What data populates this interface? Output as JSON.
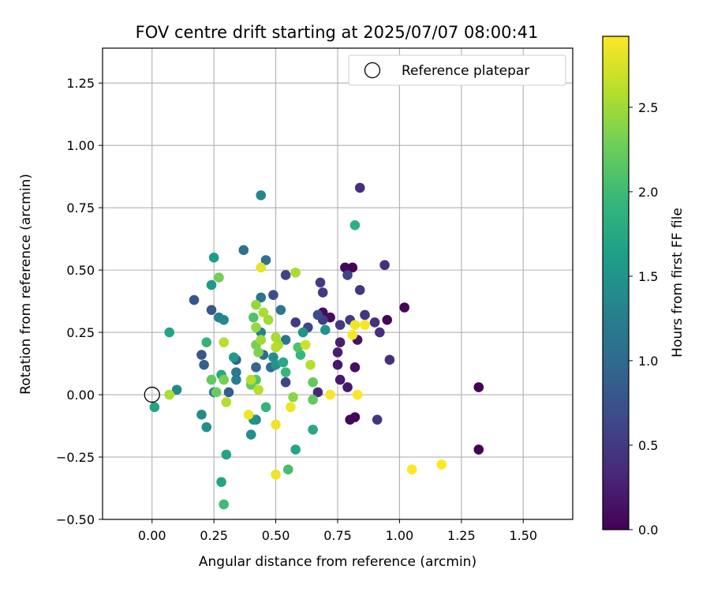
{
  "chart_data": {
    "type": "scatter",
    "title": "FOV centre drift starting at 2025/07/07 08:00:41",
    "xlabel": "Angular distance from reference (arcmin)",
    "ylabel": "Rotation from reference (arcmin)",
    "xlim": [
      -0.2,
      1.7
    ],
    "ylim": [
      -0.5,
      1.39
    ],
    "xticks": [
      0.0,
      0.25,
      0.5,
      0.75,
      1.0,
      1.25,
      1.5
    ],
    "xtick_labels": [
      "0.00",
      "0.25",
      "0.50",
      "0.75",
      "1.00",
      "1.25",
      "1.50"
    ],
    "yticks": [
      -0.5,
      -0.25,
      0.0,
      0.25,
      0.5,
      0.75,
      1.0,
      1.25
    ],
    "ytick_labels": [
      "−0.50",
      "−0.25",
      "0.00",
      "0.25",
      "0.50",
      "0.75",
      "1.00",
      "1.25"
    ],
    "grid": true,
    "legend": {
      "placement": "top-right",
      "entries": [
        "Reference platepar"
      ]
    },
    "reference_point": {
      "name": "Reference platepar",
      "x": 0.0,
      "y": 0.0,
      "marker": "open-circle"
    },
    "colorbar": {
      "label": "Hours from first FF file",
      "colormap": "viridis",
      "range": [
        0.0,
        2.92
      ],
      "ticks": [
        0.0,
        0.5,
        1.0,
        1.5,
        2.0,
        2.5
      ],
      "tick_labels": [
        "0.0",
        "0.5",
        "1.0",
        "1.5",
        "2.0",
        "2.5"
      ],
      "colors": [
        "#440154",
        "#482878",
        "#3e4989",
        "#31688e",
        "#26828e",
        "#1f9e89",
        "#35b779",
        "#6ece58",
        "#b5de2b",
        "#fde725"
      ]
    },
    "series": [
      {
        "points": [
          [
            1.32,
            0.03,
            0.0
          ],
          [
            1.32,
            -0.22,
            0.0
          ],
          [
            1.02,
            0.35,
            0.05
          ],
          [
            0.95,
            0.3,
            0.05
          ],
          [
            0.81,
            0.51,
            0.02
          ],
          [
            0.78,
            0.51,
            0.05
          ],
          [
            0.72,
            0.31,
            0.1
          ],
          [
            0.69,
            0.33,
            0.1
          ],
          [
            0.8,
            -0.1,
            0.05
          ],
          [
            0.82,
            -0.09,
            0.05
          ],
          [
            0.82,
            0.11,
            0.1
          ],
          [
            0.83,
            0.22,
            0.15
          ],
          [
            0.75,
            0.12,
            0.2
          ],
          [
            0.76,
            0.06,
            0.2
          ],
          [
            0.79,
            0.03,
            0.2
          ],
          [
            0.75,
            0.17,
            0.25
          ],
          [
            0.76,
            0.21,
            0.25
          ],
          [
            0.67,
            0.01,
            0.3
          ],
          [
            0.84,
            0.83,
            0.4
          ],
          [
            0.94,
            0.52,
            0.4
          ],
          [
            0.84,
            0.42,
            0.45
          ],
          [
            0.91,
            -0.1,
            0.45
          ],
          [
            0.96,
            0.14,
            0.4
          ],
          [
            0.9,
            0.29,
            0.4
          ],
          [
            0.92,
            0.25,
            0.4
          ],
          [
            0.86,
            0.32,
            0.45
          ],
          [
            0.8,
            0.3,
            0.5
          ],
          [
            0.76,
            0.28,
            0.5
          ],
          [
            0.68,
            0.45,
            0.5
          ],
          [
            0.69,
            0.41,
            0.5
          ],
          [
            0.69,
            0.3,
            0.55
          ],
          [
            0.58,
            0.29,
            0.5
          ],
          [
            0.54,
            0.48,
            0.6
          ],
          [
            0.54,
            0.05,
            0.6
          ],
          [
            0.63,
            0.27,
            0.6
          ],
          [
            0.79,
            0.48,
            0.6
          ],
          [
            0.67,
            0.32,
            0.7
          ],
          [
            0.49,
            0.4,
            0.7
          ],
          [
            0.17,
            0.38,
            0.8
          ],
          [
            0.2,
            0.16,
            0.8
          ],
          [
            0.24,
            0.34,
            0.8
          ],
          [
            0.21,
            0.12,
            0.9
          ],
          [
            0.31,
            0.01,
            0.85
          ],
          [
            0.34,
            0.14,
            0.9
          ],
          [
            0.42,
            0.11,
            0.95
          ],
          [
            0.45,
            0.16,
            1.0
          ],
          [
            0.48,
            0.11,
            1.05
          ],
          [
            0.46,
            0.54,
            1.1
          ],
          [
            0.37,
            0.58,
            1.1
          ],
          [
            0.44,
            0.39,
            1.1
          ],
          [
            0.52,
            0.34,
            1.15
          ],
          [
            0.54,
            0.22,
            1.15
          ],
          [
            0.34,
            0.09,
            1.2
          ],
          [
            0.34,
            0.06,
            1.25
          ],
          [
            0.25,
            0.01,
            1.3
          ],
          [
            0.42,
            -0.1,
            1.3
          ],
          [
            0.44,
            0.8,
            1.35
          ],
          [
            0.44,
            0.25,
            1.3
          ],
          [
            0.27,
            0.31,
            1.3
          ],
          [
            0.29,
            0.3,
            1.35
          ],
          [
            0.1,
            0.02,
            1.4
          ],
          [
            0.2,
            -0.08,
            1.4
          ],
          [
            0.22,
            -0.13,
            1.45
          ],
          [
            0.4,
            -0.16,
            1.45
          ],
          [
            0.41,
            -0.1,
            1.5
          ],
          [
            0.49,
            0.15,
            1.45
          ],
          [
            0.5,
            0.12,
            1.5
          ],
          [
            0.61,
            0.25,
            1.5
          ],
          [
            0.7,
            0.26,
            1.5
          ],
          [
            0.25,
            0.55,
            1.6
          ],
          [
            0.24,
            0.44,
            1.6
          ],
          [
            0.33,
            0.15,
            1.6
          ],
          [
            0.01,
            -0.05,
            1.7
          ],
          [
            0.07,
            0.25,
            1.7
          ],
          [
            0.28,
            -0.35,
            1.7
          ],
          [
            0.3,
            -0.24,
            1.7
          ],
          [
            0.28,
            0.08,
            1.75
          ],
          [
            0.53,
            0.13,
            1.75
          ],
          [
            0.58,
            -0.22,
            1.7
          ],
          [
            0.65,
            -0.14,
            1.75
          ],
          [
            0.82,
            0.68,
            1.85
          ],
          [
            0.22,
            0.21,
            1.9
          ],
          [
            0.46,
            -0.05,
            1.9
          ],
          [
            0.54,
            0.09,
            1.95
          ],
          [
            0.6,
            0.16,
            1.95
          ],
          [
            0.29,
            -0.44,
            2.0
          ],
          [
            0.55,
            -0.3,
            2.05
          ],
          [
            0.41,
            0.31,
            2.1
          ],
          [
            0.42,
            0.06,
            2.1
          ],
          [
            0.4,
            0.04,
            2.2
          ],
          [
            0.59,
            0.19,
            2.1
          ],
          [
            0.65,
            0.05,
            2.2
          ],
          [
            0.65,
            -0.02,
            2.2
          ],
          [
            0.24,
            0.06,
            2.2
          ],
          [
            0.26,
            0.01,
            2.25
          ],
          [
            0.29,
            0.06,
            2.3
          ],
          [
            0.27,
            0.47,
            2.3
          ],
          [
            0.42,
            0.2,
            2.3
          ],
          [
            0.43,
            0.17,
            2.35
          ],
          [
            0.57,
            -0.01,
            2.4
          ],
          [
            0.58,
            0.49,
            2.55
          ],
          [
            0.42,
            0.36,
            2.45
          ],
          [
            0.42,
            0.27,
            2.45
          ],
          [
            0.44,
            0.22,
            2.5
          ],
          [
            0.47,
            0.3,
            2.5
          ],
          [
            0.45,
            0.33,
            2.55
          ],
          [
            0.5,
            0.23,
            2.55
          ],
          [
            0.51,
            0.2,
            2.55
          ],
          [
            0.5,
            0.19,
            2.6
          ],
          [
            0.29,
            0.21,
            2.6
          ],
          [
            0.3,
            -0.03,
            2.6
          ],
          [
            0.64,
            0.12,
            2.6
          ],
          [
            0.07,
            0.0,
            2.55
          ],
          [
            0.43,
            0.02,
            2.6
          ],
          [
            0.4,
            0.06,
            2.6
          ],
          [
            0.62,
            0.2,
            2.7
          ],
          [
            0.44,
            0.51,
            2.8
          ],
          [
            0.5,
            -0.32,
            2.85
          ],
          [
            0.5,
            -0.12,
            2.85
          ],
          [
            0.39,
            -0.08,
            2.85
          ],
          [
            0.56,
            -0.05,
            2.85
          ],
          [
            0.72,
            0.0,
            2.9
          ],
          [
            0.83,
            0.0,
            2.9
          ],
          [
            0.81,
            0.24,
            2.9
          ],
          [
            0.82,
            0.28,
            2.85
          ],
          [
            0.86,
            0.28,
            2.9
          ],
          [
            1.05,
            -0.3,
            2.92
          ],
          [
            1.17,
            -0.28,
            2.92
          ]
        ]
      }
    ]
  }
}
